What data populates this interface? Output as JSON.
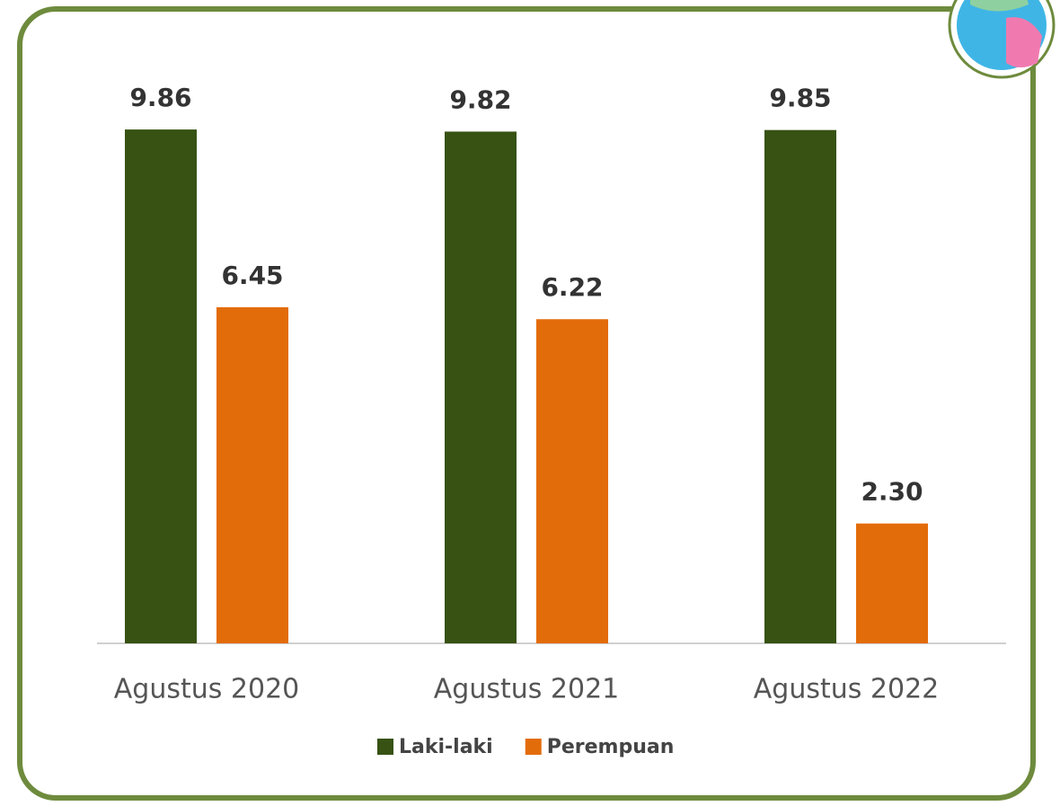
{
  "chart_data": {
    "type": "bar",
    "categories": [
      "Agustus 2020",
      "Agustus 2021",
      "Agustus 2022"
    ],
    "series": [
      {
        "name": "Laki-laki",
        "color": "#375213",
        "values": [
          9.86,
          9.82,
          9.85
        ],
        "value_labels": [
          "9.86",
          "9.82",
          "9.85"
        ]
      },
      {
        "name": "Perempuan",
        "color": "#e36c0a",
        "values": [
          6.45,
          6.22,
          2.3
        ],
        "value_labels": [
          "6.45",
          "6.22",
          "2.30"
        ]
      }
    ],
    "ylim": [
      0,
      10
    ],
    "grid": false,
    "legend": "bottom"
  }
}
